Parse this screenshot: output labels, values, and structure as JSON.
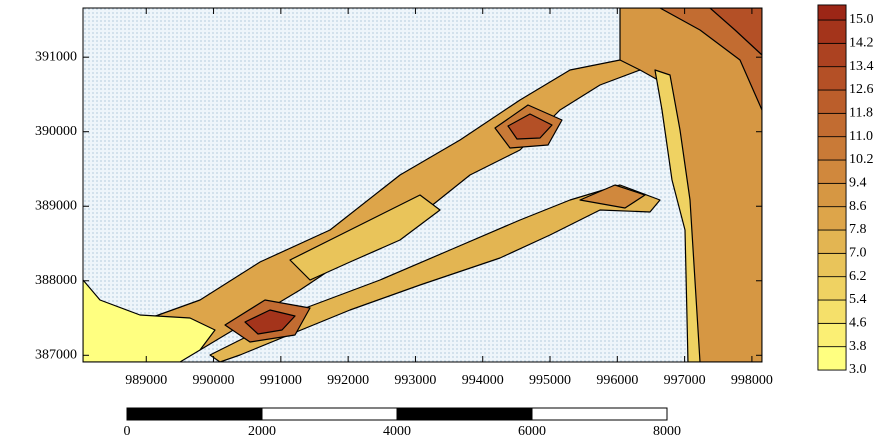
{
  "chart_data": {
    "type": "contour",
    "xlim": [
      988060,
      998150
    ],
    "ylim": [
      386910,
      391660
    ],
    "xticks": [
      989000,
      990000,
      991000,
      992000,
      993000,
      994000,
      995000,
      996000,
      997000,
      998000
    ],
    "yticks": [
      387000,
      388000,
      389000,
      390000,
      391000
    ],
    "colorbar": {
      "levels": [
        {
          "value": 3,
          "label": "3.0"
        },
        {
          "value": 3.8,
          "label": "3.8"
        },
        {
          "value": 4.6,
          "label": "4.6"
        },
        {
          "value": 5.4,
          "label": "5.4"
        },
        {
          "value": 6.2,
          "label": "6.2"
        },
        {
          "value": 7,
          "label": "7.0"
        },
        {
          "value": 7.8,
          "label": "7.8"
        },
        {
          "value": 8.6,
          "label": "8.6"
        },
        {
          "value": 9.4,
          "label": "9.4"
        },
        {
          "value": 10.2,
          "label": "10.2"
        },
        {
          "value": 11,
          "label": "11.0"
        },
        {
          "value": 11.8,
          "label": "11.8"
        },
        {
          "value": 12.6,
          "label": "12.6"
        },
        {
          "value": 13.4,
          "label": "13.4"
        },
        {
          "value": 14.2,
          "label": "14.2"
        },
        {
          "value": 15,
          "label": "15.0"
        }
      ],
      "colors": [
        "#ffff80",
        "#fbef74",
        "#f5e06a",
        "#efd262",
        "#e9c45a",
        "#e3b552",
        "#dda54a",
        "#d69743",
        "#d0883d",
        "#c97a37",
        "#c26c31",
        "#bb5e2b",
        "#b45026",
        "#ac4221",
        "#a4341b",
        "#9c2616"
      ]
    },
    "scale_bar": {
      "ticks": [
        0,
        2000,
        4000,
        6000,
        8000
      ]
    }
  }
}
